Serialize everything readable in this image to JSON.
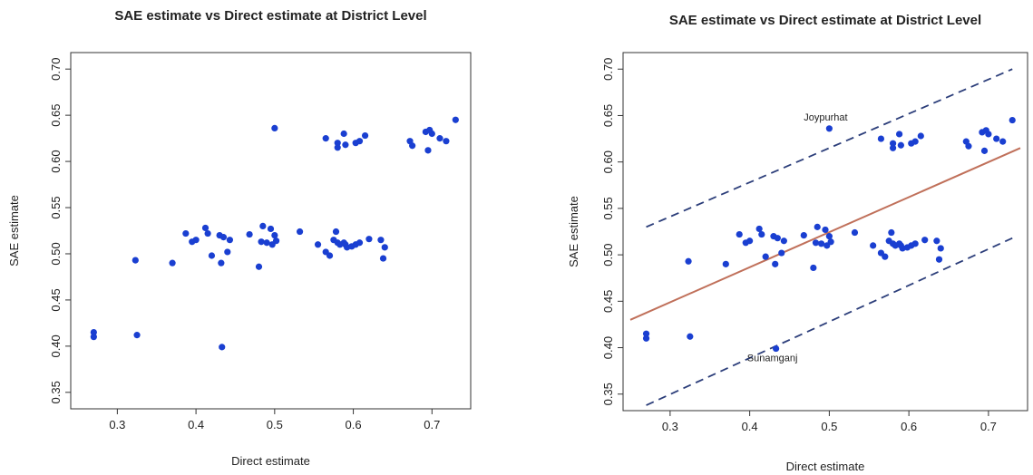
{
  "chart_data": [
    {
      "type": "scatter",
      "title": "SAE estimate vs Direct estimate at District Level",
      "xlabel": "Direct estimate",
      "ylabel": "SAE estimate",
      "xlim": [
        0.25,
        0.74
      ],
      "ylim": [
        0.34,
        0.71
      ],
      "xticks": [
        "0.3",
        "0.4",
        "0.5",
        "0.6",
        "0.7"
      ],
      "yticks": [
        "0.35",
        "0.40",
        "0.45",
        "0.50",
        "0.55",
        "0.60",
        "0.65",
        "0.70"
      ],
      "point_color": "#1a3fd1",
      "x": [
        0.27,
        0.27,
        0.325,
        0.323,
        0.37,
        0.387,
        0.395,
        0.4,
        0.412,
        0.415,
        0.42,
        0.43,
        0.432,
        0.435,
        0.44,
        0.443,
        0.468,
        0.48,
        0.483,
        0.485,
        0.49,
        0.495,
        0.497,
        0.5,
        0.502,
        0.532,
        0.555,
        0.565,
        0.57,
        0.575,
        0.578,
        0.58,
        0.583,
        0.588,
        0.59,
        0.592,
        0.598,
        0.603,
        0.608,
        0.62,
        0.635,
        0.638,
        0.64,
        0.565,
        0.58,
        0.58,
        0.588,
        0.59,
        0.603,
        0.608,
        0.615,
        0.672,
        0.675,
        0.692,
        0.695,
        0.697,
        0.7,
        0.71,
        0.718,
        0.73,
        0.5,
        0.433
      ],
      "y": [
        0.41,
        0.415,
        0.412,
        0.493,
        0.49,
        0.522,
        0.513,
        0.515,
        0.528,
        0.522,
        0.498,
        0.52,
        0.49,
        0.518,
        0.502,
        0.515,
        0.521,
        0.486,
        0.513,
        0.53,
        0.512,
        0.527,
        0.51,
        0.52,
        0.514,
        0.524,
        0.51,
        0.502,
        0.498,
        0.515,
        0.524,
        0.512,
        0.51,
        0.512,
        0.51,
        0.507,
        0.508,
        0.51,
        0.512,
        0.516,
        0.515,
        0.495,
        0.507,
        0.625,
        0.615,
        0.62,
        0.63,
        0.618,
        0.62,
        0.622,
        0.628,
        0.622,
        0.617,
        0.632,
        0.612,
        0.634,
        0.63,
        0.625,
        0.622,
        0.645,
        0.636,
        0.399
      ],
      "annotations": []
    },
    {
      "type": "scatter",
      "title": "SAE estimate vs Direct estimate at District Level",
      "xlabel": "Direct estimate",
      "ylabel": "SAE estimate",
      "xlim": [
        0.25,
        0.74
      ],
      "ylim": [
        0.34,
        0.71
      ],
      "xticks": [
        "0.3",
        "0.4",
        "0.5",
        "0.6",
        "0.7"
      ],
      "yticks": [
        "0.35",
        "0.40",
        "0.45",
        "0.50",
        "0.55",
        "0.60",
        "0.65",
        "0.70"
      ],
      "point_color": "#1a3fd1",
      "line_color": "#c0705a",
      "band_color": "#2c3e7a",
      "fit_line": {
        "x": [
          0.25,
          0.74
        ],
        "y": [
          0.43,
          0.615
        ]
      },
      "upper_band": {
        "x": [
          0.27,
          0.73
        ],
        "y": [
          0.53,
          0.7
        ]
      },
      "lower_band": {
        "x": [
          0.27,
          0.73
        ],
        "y": [
          0.338,
          0.518
        ]
      },
      "x": [
        0.27,
        0.27,
        0.325,
        0.323,
        0.37,
        0.387,
        0.395,
        0.4,
        0.412,
        0.415,
        0.42,
        0.43,
        0.432,
        0.435,
        0.44,
        0.443,
        0.468,
        0.48,
        0.483,
        0.485,
        0.49,
        0.495,
        0.497,
        0.5,
        0.502,
        0.532,
        0.555,
        0.565,
        0.57,
        0.575,
        0.578,
        0.58,
        0.583,
        0.588,
        0.59,
        0.592,
        0.598,
        0.603,
        0.608,
        0.62,
        0.635,
        0.638,
        0.64,
        0.565,
        0.58,
        0.58,
        0.588,
        0.59,
        0.603,
        0.608,
        0.615,
        0.672,
        0.675,
        0.692,
        0.695,
        0.697,
        0.7,
        0.71,
        0.718,
        0.73,
        0.5,
        0.433
      ],
      "y": [
        0.41,
        0.415,
        0.412,
        0.493,
        0.49,
        0.522,
        0.513,
        0.515,
        0.528,
        0.522,
        0.498,
        0.52,
        0.49,
        0.518,
        0.502,
        0.515,
        0.521,
        0.486,
        0.513,
        0.53,
        0.512,
        0.527,
        0.51,
        0.52,
        0.514,
        0.524,
        0.51,
        0.502,
        0.498,
        0.515,
        0.524,
        0.512,
        0.51,
        0.512,
        0.51,
        0.507,
        0.508,
        0.51,
        0.512,
        0.516,
        0.515,
        0.495,
        0.507,
        0.625,
        0.615,
        0.62,
        0.63,
        0.618,
        0.62,
        0.622,
        0.628,
        0.622,
        0.617,
        0.632,
        0.612,
        0.634,
        0.63,
        0.625,
        0.622,
        0.645,
        0.636,
        0.399
      ],
      "annotations": [
        {
          "text": "Joypurhat",
          "x": 0.5,
          "y": 0.636
        },
        {
          "text": "Sunamganj",
          "x": 0.433,
          "y": 0.399
        }
      ]
    }
  ]
}
